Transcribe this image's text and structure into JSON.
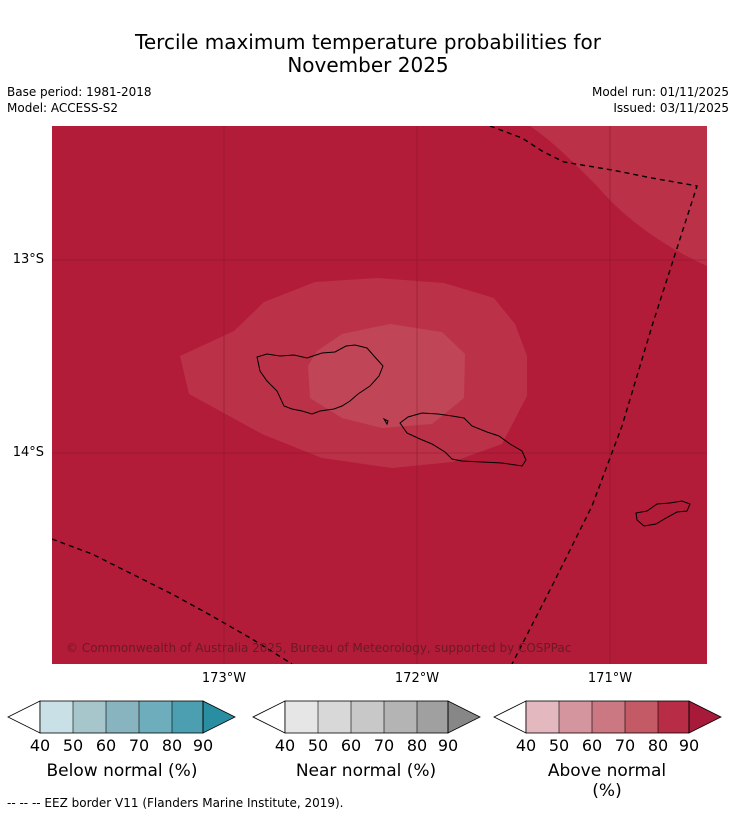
{
  "title_line1": "Tercile maximum temperature probabilities for",
  "title_line2": "November 2025",
  "base_period": "Base period: 1981-2018",
  "model": "Model: ACCESS-S2",
  "model_run": "Model run: 01/11/2025",
  "issued": "Issued: 03/11/2025",
  "lat_labels": [
    "13°S",
    "14°S"
  ],
  "lon_labels": [
    "173°W",
    "172°W",
    "171°W"
  ],
  "copyright": "© Commonwealth of Australia 2025, Bureau of Meteorology, supported by COSPPac",
  "colorbars": [
    {
      "label": "Below normal (%)",
      "ticks": [
        "40",
        "50",
        "60",
        "70",
        "80",
        "90"
      ],
      "colors": [
        "#c8e0e6",
        "#a6c6cb",
        "#88b4c0",
        "#6eaebc",
        "#4b9fb0"
      ],
      "max_color": "#2a8ea3"
    },
    {
      "label": "Near normal (%)",
      "ticks": [
        "40",
        "50",
        "60",
        "70",
        "80",
        "90"
      ],
      "colors": [
        "#e6e6e6",
        "#d8d8d8",
        "#c8c8c8",
        "#b4b4b4",
        "#a0a0a0"
      ],
      "max_color": "#878787"
    },
    {
      "label": "Above normal (%)",
      "ticks": [
        "40",
        "50",
        "60",
        "70",
        "80",
        "90"
      ],
      "colors": [
        "#e3b8be",
        "#d5959e",
        "#cc7882",
        "#c45a66",
        "#b82d45"
      ],
      "max_color": "#a81a3a"
    }
  ],
  "footnote": "--  --  -- EEZ border V11 (Flanders Marine Institute, 2019).",
  "map_colors": {
    "base": "#b21c39",
    "level2": "#bb3148",
    "level3": "#c04657"
  }
}
